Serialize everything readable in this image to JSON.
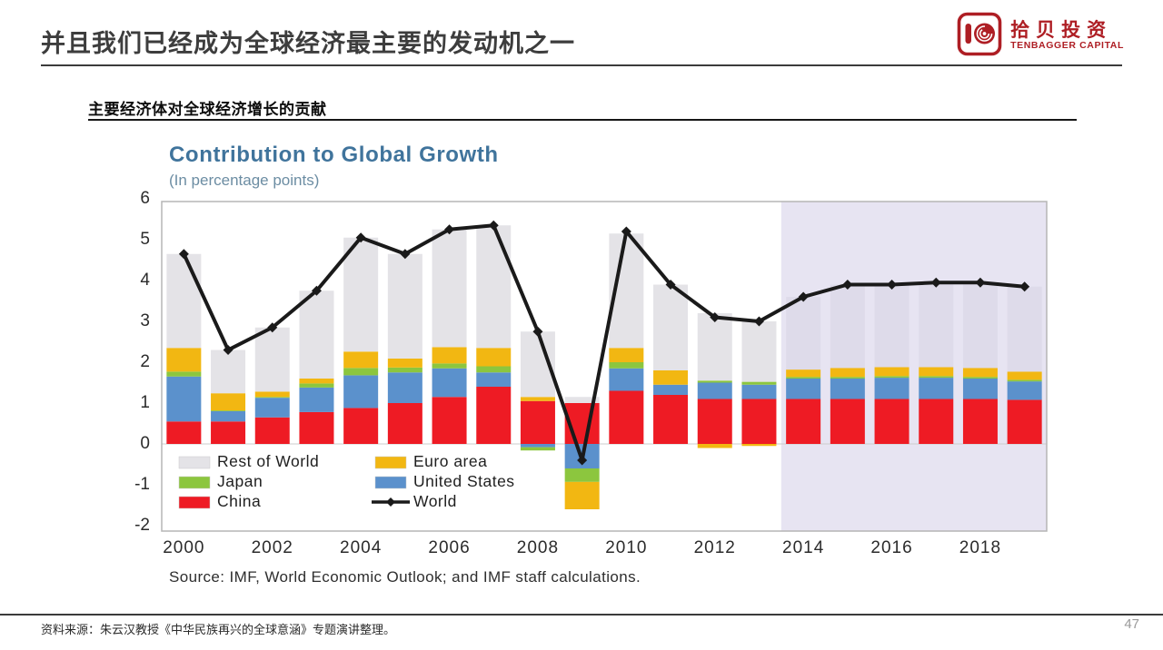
{
  "slide": {
    "title": "并且我们已经成为全球经济最主要的发动机之一",
    "footer_source": "资料来源：朱云汉教授《中华民族再兴的全球意涵》专题演讲整理。",
    "page_number": "47"
  },
  "logo": {
    "cn": "拾贝投资",
    "en": "TENBAGGER CAPITAL",
    "color": "#AE1E24"
  },
  "section": {
    "heading": "主要经济体对全球经济增长的贡献"
  },
  "chart_data": {
    "type": "bar",
    "subtype": "stacked-bar-with-line",
    "title": "Contribution to Global Growth",
    "subtitle": "(In percentage points)",
    "source": "Source: IMF, World Economic Outlook; and IMF staff calculations.",
    "ylim": [
      -2,
      6
    ],
    "y_ticks": [
      6,
      5,
      4,
      3,
      2,
      1,
      0,
      -1,
      -2
    ],
    "grid": "off",
    "legend_position": "inside bottom-left",
    "years": [
      2000,
      2001,
      2002,
      2003,
      2004,
      2005,
      2006,
      2007,
      2008,
      2009,
      2010,
      2011,
      2012,
      2013,
      2014,
      2015,
      2016,
      2017,
      2018,
      2019
    ],
    "x_tick_labels": [
      "2000",
      "2002",
      "2004",
      "2006",
      "2008",
      "2010",
      "2012",
      "2014",
      "2016",
      "2018"
    ],
    "forecast_start_year": 2014,
    "forecast_band_color": "#E7E4F2",
    "rest_of_world_forecast_color": "#DEDBEA",
    "plot_background": "#ffffff",
    "series": [
      {
        "name": "China",
        "color": "#EE1B24",
        "values": [
          0.55,
          0.55,
          0.65,
          0.78,
          0.88,
          1.0,
          1.15,
          1.4,
          1.05,
          1.0,
          1.3,
          1.2,
          1.1,
          1.1,
          1.1,
          1.1,
          1.1,
          1.1,
          1.1,
          1.08
        ]
      },
      {
        "name": "United States",
        "color": "#5B91CC",
        "values": [
          1.1,
          0.25,
          0.48,
          0.6,
          0.8,
          0.75,
          0.7,
          0.35,
          -0.08,
          -0.6,
          0.55,
          0.25,
          0.4,
          0.35,
          0.5,
          0.5,
          0.52,
          0.52,
          0.5,
          0.45
        ]
      },
      {
        "name": "Japan",
        "color": "#8CC63E",
        "values": [
          0.12,
          0.02,
          0.02,
          0.1,
          0.18,
          0.12,
          0.12,
          0.15,
          -0.08,
          -0.33,
          0.15,
          0.0,
          0.05,
          0.07,
          0.04,
          0.04,
          0.04,
          0.04,
          0.04,
          0.04
        ]
      },
      {
        "name": "Euro area",
        "color": "#F2B712",
        "values": [
          0.58,
          0.42,
          0.13,
          0.12,
          0.4,
          0.22,
          0.4,
          0.45,
          0.1,
          -0.67,
          0.35,
          0.35,
          -0.1,
          -0.05,
          0.18,
          0.22,
          0.22,
          0.22,
          0.22,
          0.2
        ]
      },
      {
        "name": "Rest of World",
        "color": "#E4E3E7",
        "values": [
          2.3,
          1.06,
          1.57,
          2.15,
          2.79,
          2.56,
          2.88,
          3.0,
          1.6,
          0.15,
          2.8,
          2.1,
          1.65,
          1.48,
          1.78,
          2.04,
          2.02,
          2.07,
          2.09,
          2.08
        ]
      }
    ],
    "line_series": {
      "name": "World",
      "color": "#1A1A1A",
      "values": [
        4.65,
        2.3,
        2.85,
        3.75,
        5.05,
        4.65,
        5.25,
        5.35,
        2.75,
        -0.4,
        5.2,
        3.9,
        3.1,
        3.0,
        3.6,
        3.9,
        3.9,
        3.95,
        3.95,
        3.85
      ]
    },
    "legend": {
      "columns": [
        [
          {
            "label": "Rest of World",
            "color": "#E4E3E7",
            "type": "box"
          },
          {
            "label": "Japan",
            "color": "#8CC63E",
            "type": "box"
          },
          {
            "label": "China",
            "color": "#EE1B24",
            "type": "box"
          }
        ],
        [
          {
            "label": "Euro area",
            "color": "#F2B712",
            "type": "box"
          },
          {
            "label": "United States",
            "color": "#5B91CC",
            "type": "box"
          },
          {
            "label": "World",
            "color": "#1A1A1A",
            "type": "line"
          }
        ]
      ]
    }
  }
}
